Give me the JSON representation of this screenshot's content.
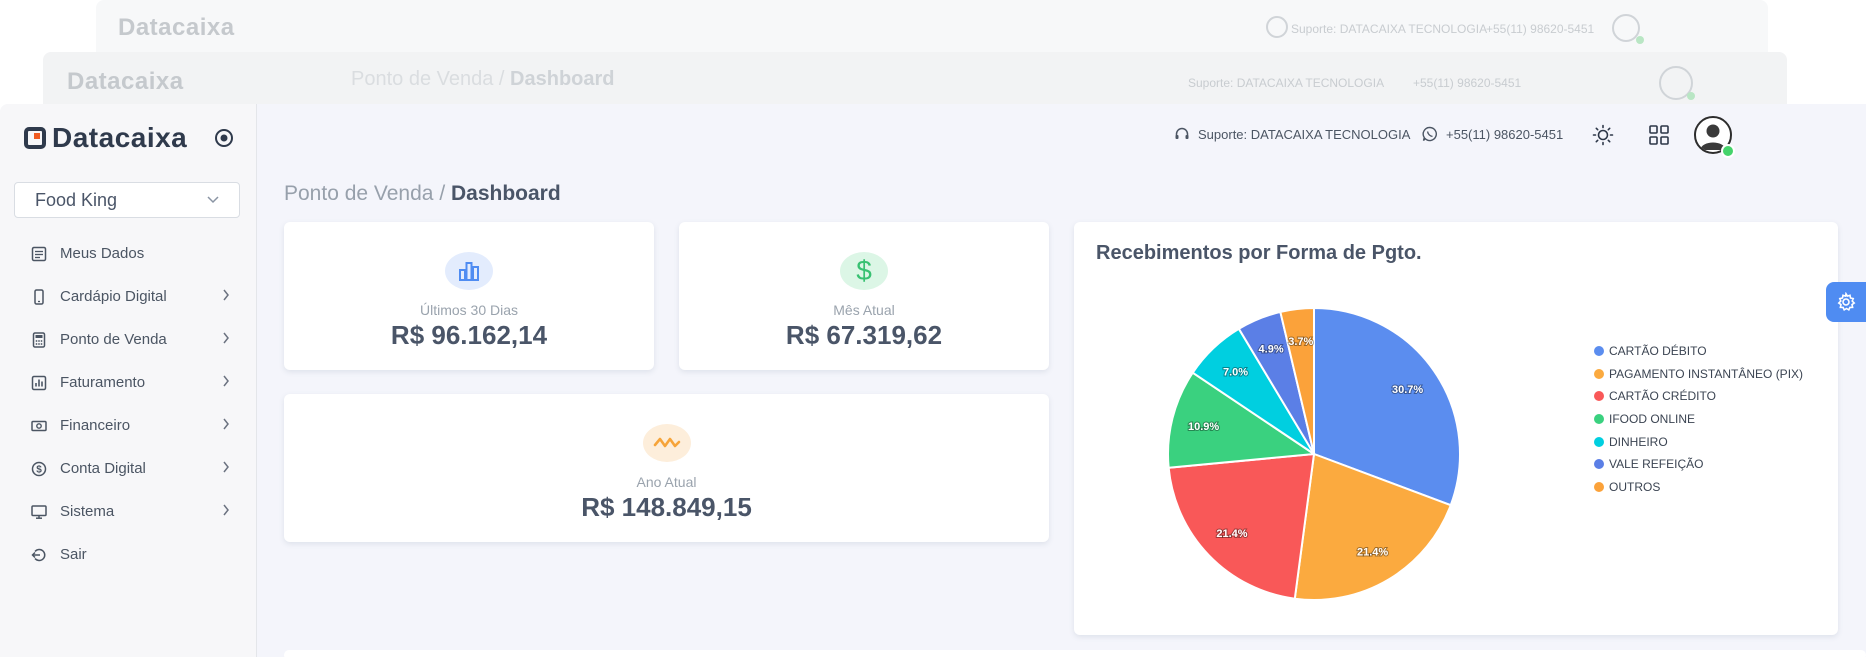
{
  "app": {
    "logo_text": "Datacaixa",
    "store": "Food King"
  },
  "sidebar": {
    "items": [
      {
        "label": "Meus Dados",
        "icon": "profile-icon",
        "has_submenu": false
      },
      {
        "label": "Cardápio Digital",
        "icon": "phone-icon",
        "has_submenu": true
      },
      {
        "label": "Ponto de Venda",
        "icon": "calculator-icon",
        "has_submenu": true
      },
      {
        "label": "Faturamento",
        "icon": "bar-chart-icon",
        "has_submenu": true
      },
      {
        "label": "Financeiro",
        "icon": "money-icon",
        "has_submenu": true
      },
      {
        "label": "Conta Digital",
        "icon": "dollar-circle-icon",
        "has_submenu": true
      },
      {
        "label": "Sistema",
        "icon": "monitor-icon",
        "has_submenu": true
      },
      {
        "label": "Sair",
        "icon": "logout-icon",
        "has_submenu": false
      }
    ]
  },
  "header": {
    "support_text": "Suporte: DATACAIXA TECNOLOGIA",
    "whatsapp_text": "+55(11) 98620-5451"
  },
  "breadcrumb": {
    "parent": "Ponto de Venda",
    "separator": " / ",
    "current": "Dashboard"
  },
  "stats": {
    "last30": {
      "label": "Últimos 30 Dias",
      "value": "R$ 96.162,14",
      "color": "#4f8cf2"
    },
    "month": {
      "label": "Mês Atual",
      "value": "R$ 67.319,62",
      "color": "#38c172"
    },
    "year": {
      "label": "Ano Atual",
      "value": "R$ 148.849,15",
      "color": "#f6a43a"
    }
  },
  "chart_data": {
    "type": "pie",
    "title": "Recebimentos por Forma de Pgto.",
    "legend_position": "right",
    "slices": [
      {
        "name": "CARTÃO DÉBITO",
        "value": 30.7,
        "label": "30.7%",
        "color": "#5b8def"
      },
      {
        "name": "PAGAMENTO INSTANTÂNEO (PIX)",
        "value": 21.4,
        "label": "21.4%",
        "color": "#fbaa3f"
      },
      {
        "name": "CARTÃO CRÉDITO",
        "value": 21.4,
        "label": "21.4%",
        "color": "#f95858"
      },
      {
        "name": "IFOOD ONLINE",
        "value": 10.9,
        "label": "10.9%",
        "color": "#3ad17f"
      },
      {
        "name": "DINHEIRO",
        "value": 7.0,
        "label": "7.0%",
        "color": "#00cfe0"
      },
      {
        "name": "VALE REFEIÇÃO",
        "value": 4.9,
        "label": "4.9%",
        "color": "#5b7fe6"
      },
      {
        "name": "OUTROS",
        "value": 3.7,
        "label": "3.7%",
        "color": "#fba23a"
      }
    ]
  }
}
